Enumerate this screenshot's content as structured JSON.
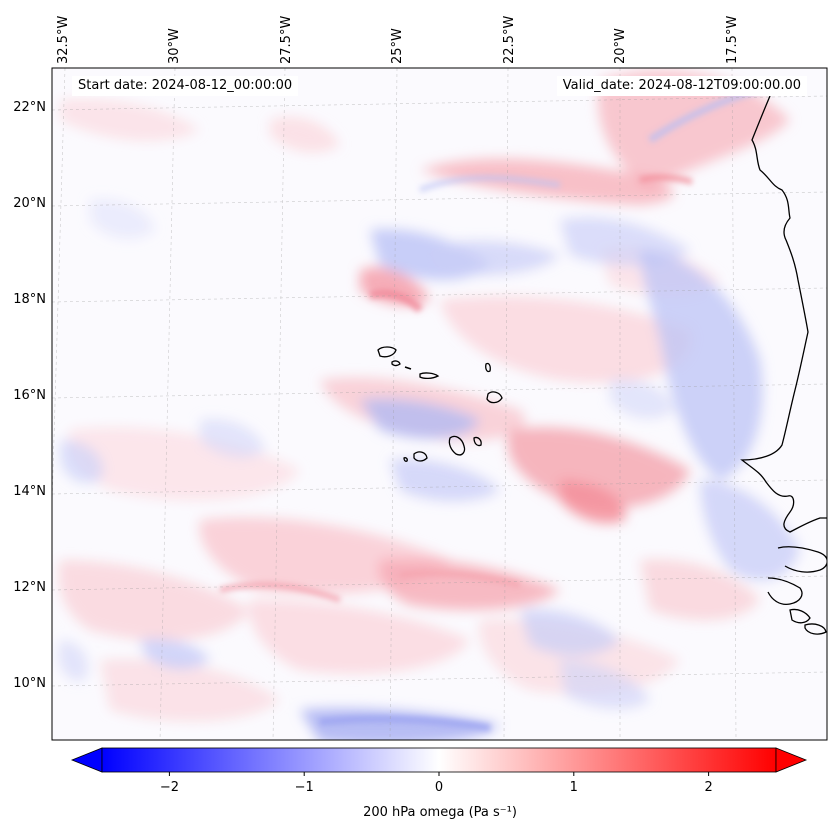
{
  "header": {
    "start_date": "Start date: 2024-08-12_00:00:00",
    "valid_date": "Valid_date: 2024-08-12T09:00:00.00"
  },
  "lon_labels": [
    "32.5°W",
    "30°W",
    "27.5°W",
    "25°W",
    "22.5°W",
    "20°W",
    "17.5°W"
  ],
  "lat_labels": [
    "22°N",
    "20°N",
    "18°N",
    "16°N",
    "14°N",
    "12°N",
    "10°N"
  ],
  "colorbar": {
    "ticks": [
      "−2",
      "−1",
      "0",
      "1",
      "2"
    ],
    "tick_values": [
      -2,
      -1,
      0,
      1,
      2
    ],
    "range": [
      -2.5,
      2.5
    ],
    "label": "200 hPa omega (Pa s⁻¹)",
    "cmap": "bwr",
    "extend": "both",
    "colors": {
      "low": "#0000ff",
      "mid": "#ffffff",
      "high": "#ff0000"
    }
  },
  "map": {
    "field": "omega",
    "level": "200 hPa",
    "lon_range": [
      -33,
      -15.6
    ],
    "lat_range": [
      8.8,
      22.8
    ],
    "gridlines": true,
    "coastline_color": "#000000"
  }
}
